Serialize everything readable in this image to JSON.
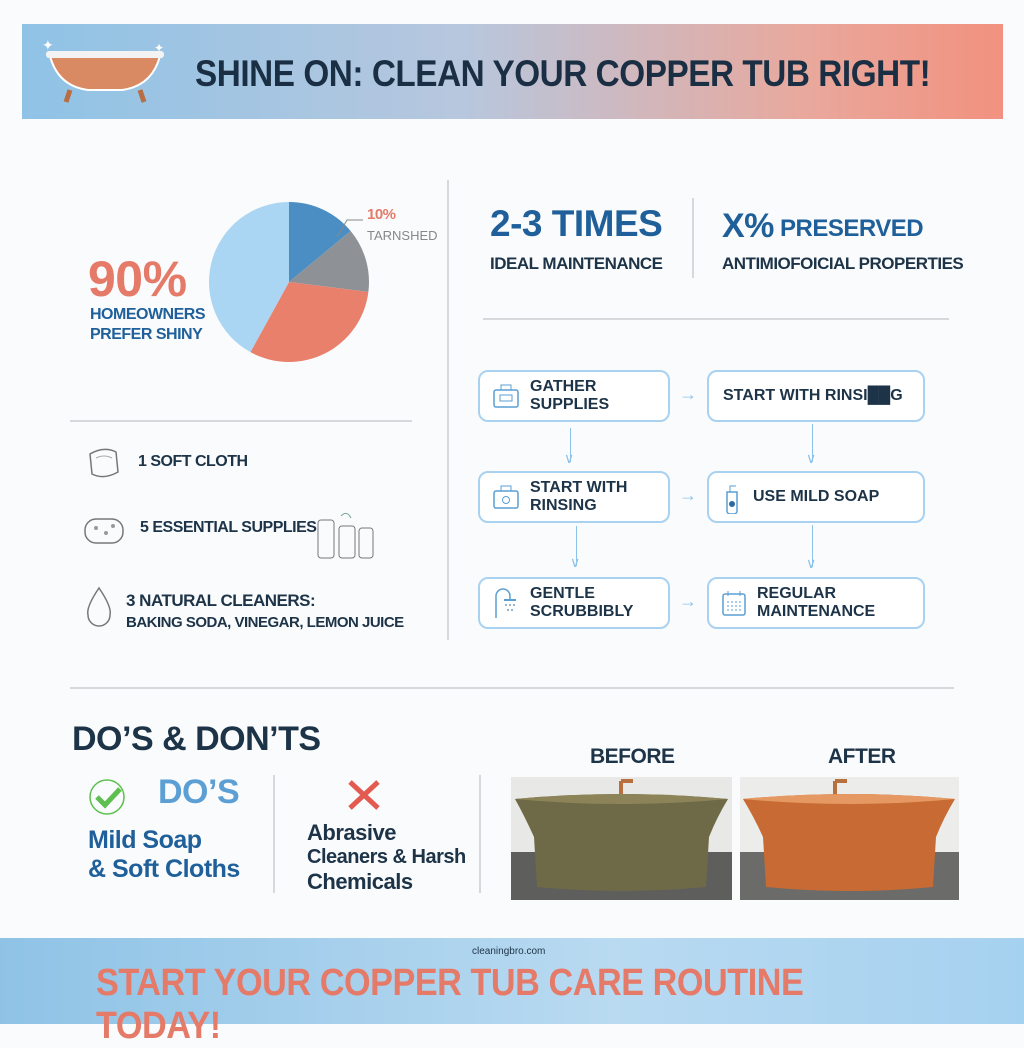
{
  "header": {
    "title": "SHINE ON: CLEAN YOUR COPPER TUB RIGHT!",
    "icon": "bathtub-icon"
  },
  "stats": {
    "homeowners_pct": "90%",
    "homeowners_label_1": "HOMEOWNERS",
    "homeowners_label_2": "PREFER SHINY",
    "tarnished_pct": "10%",
    "tarnished_label": "TARNSHED",
    "maintenance_value": "2-3 TIMES",
    "maintenance_label": "IDEAL MAINTENANCE",
    "preserved_value": "X%",
    "preserved_word": "PRESERVED",
    "preserved_label": "ANTIMIOFOICIAL PROPERTIES"
  },
  "chart_data": {
    "type": "pie",
    "slices": [
      {
        "value": 14,
        "color": "#4a8ec4"
      },
      {
        "value": 13,
        "color": "#8e9296"
      },
      {
        "value": 31,
        "color": "#e8806c"
      },
      {
        "value": 42,
        "color": "#aad6f3"
      }
    ],
    "annotations": [
      "10%",
      "TARNSHED"
    ]
  },
  "supplies": [
    {
      "icon": "cloth-icon",
      "text": "1 SOFT CLOTH"
    },
    {
      "icon": "sponge-icon",
      "text": "5 ESSENTIAL SUPPLIES"
    },
    {
      "icon": "water-drop-icon",
      "text": "3 NATURAL CLEANERS:",
      "sub": "BAKING SODA, VINEGAR, LEMON JUICE"
    }
  ],
  "steps": [
    {
      "icon": "toolbox-icon",
      "label": "GATHER SUPPLIES"
    },
    {
      "icon": "",
      "label": "START WITH RINSI██G"
    },
    {
      "icon": "toolbox-drop-icon",
      "label": "START WITH RINSING"
    },
    {
      "icon": "soap-bottle-icon",
      "label": "USE MILD SOAP"
    },
    {
      "icon": "shower-icon",
      "label": "GENTLE SCRUBBIBLY"
    },
    {
      "icon": "calendar-icon",
      "label": "REGULAR MAINTENANCE"
    }
  ],
  "dos_donts": {
    "title": "DO’S & DON’TS",
    "dos_heading": "DO’S",
    "dos_line1": "Mild Soap",
    "dos_line2": "& Soft Cloths",
    "donts_line1": "Abrasive",
    "donts_line2": "Cleaners & Harsh",
    "donts_line3": "Chemicals"
  },
  "comparison": {
    "before": "BEFORE",
    "after": "AFTER"
  },
  "footer": {
    "watermark": "cleaningbro.com",
    "cta": "START YOUR COPPER TUB CARE ROUTINE TODAY!"
  }
}
